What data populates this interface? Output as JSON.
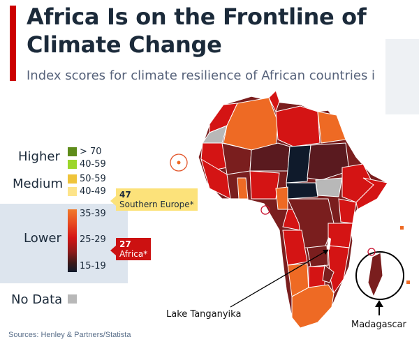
{
  "header": {
    "title": "Africa Is on the Frontline of Climate Change",
    "subtitle": "Index scores for climate resilience of African countries i"
  },
  "legend": {
    "tiers": {
      "higher": "Higher",
      "medium": "Medium",
      "lower": "Lower",
      "no_data": "No Data"
    },
    "ranges": [
      "> 70",
      "40-59",
      "50-59",
      "40-49",
      "35-39",
      "25-29",
      "15-19"
    ],
    "colors": {
      "gt70": "#5e8c1a",
      "higher_40_59": "#9bd62a",
      "m50_59": "#efc43a",
      "m40_49": "#fde48a",
      "no_data": "#b8b8b8"
    },
    "callouts": {
      "europe": {
        "value": "47",
        "label": "Southern Europe*"
      },
      "africa": {
        "value": "27",
        "label": "Africa*"
      }
    }
  },
  "map_labels": {
    "lake": "Lake Tanganyika",
    "island": "Madagascar"
  },
  "colors": {
    "orange": "#ee6a24",
    "red": "#d41414",
    "darkred": "#7a1e1e",
    "maroon": "#5a1a1f",
    "navy": "#0f1a2b",
    "grey": "#b8b8b8",
    "highlight": "#c8102e"
  },
  "source": "Sources: Henley & Partners/Statista"
}
